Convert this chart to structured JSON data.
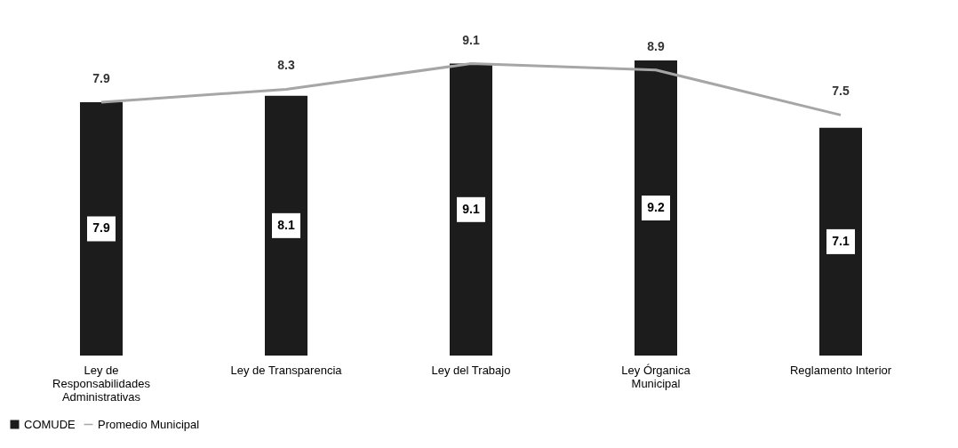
{
  "chart_data": {
    "type": "bar",
    "categories": [
      "Ley de Responsabilidades Administrativas",
      "Ley de Transparencia",
      "Ley del Trabajo",
      "Ley Órganica Municipal",
      "Reglamento Interior"
    ],
    "series": [
      {
        "name": "COMUDE",
        "type": "bar",
        "color": "#1c1c1c",
        "values": [
          7.9,
          8.1,
          9.1,
          9.2,
          7.1
        ]
      },
      {
        "name": "Promedio Municipal",
        "type": "line",
        "color": "#a6a6a6",
        "values": [
          7.9,
          8.3,
          9.1,
          8.9,
          7.5
        ]
      }
    ],
    "data_labels": true,
    "legend": "bottom",
    "grid": false,
    "marker": "none",
    "line_style": "solid"
  }
}
